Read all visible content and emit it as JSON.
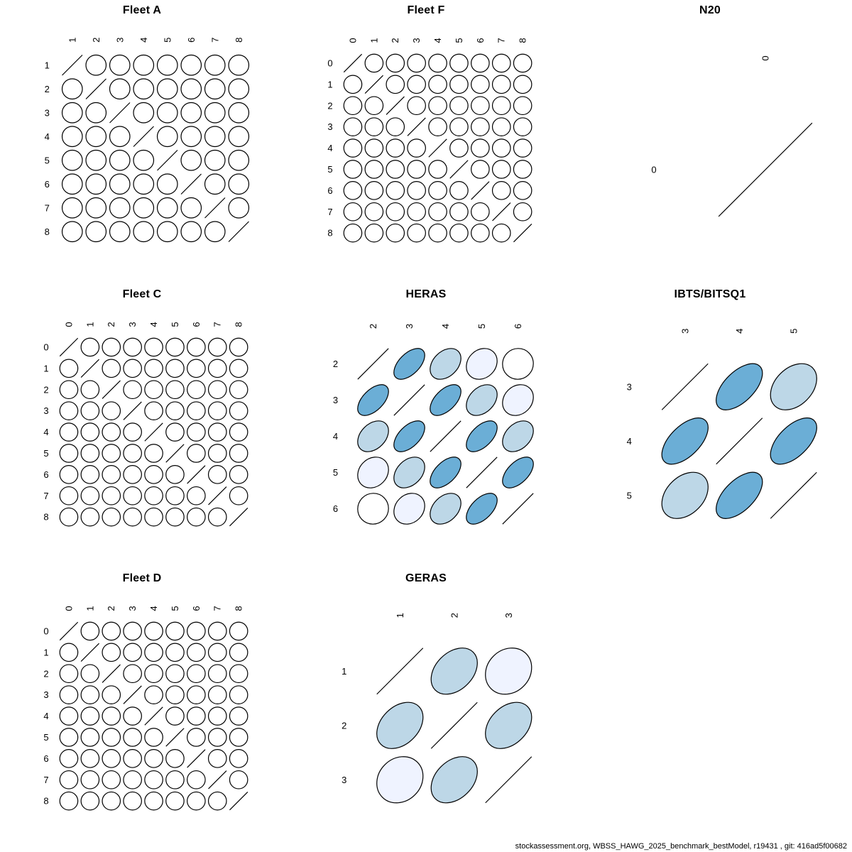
{
  "footer": "stockassessment.org, WBSS_HAWG_2025_benchmark_bestModel, r19431 , git: 416ad5f00682",
  "palette": {
    "ellipse_stroke": "#000000",
    "tick_label_color": "#000000",
    "title_color": "#000000",
    "background": "#ffffff",
    "positive_bins": [
      {
        "abs_r_min": 0.45,
        "color": "#6BAED6"
      },
      {
        "abs_r_min": 0.27,
        "color": "#BDD7E7"
      },
      {
        "abs_r_min": 0.09,
        "color": "#EFF3FF"
      },
      {
        "abs_r_min": 0.0,
        "color": "#FFFFFF"
      }
    ]
  },
  "chart_data": {
    "type": "heatmap",
    "subtype": "correlation-ellipse-matrix-grid",
    "legend_position": "none",
    "panels": [
      {
        "id": "fleet_a",
        "title": "Fleet A",
        "ages": [
          "1",
          "2",
          "3",
          "4",
          "5",
          "6",
          "7",
          "8"
        ],
        "lag_corr": [
          1,
          0,
          0,
          0,
          0,
          0,
          0,
          0
        ]
      },
      {
        "id": "fleet_f",
        "title": "Fleet F",
        "ages": [
          "0",
          "1",
          "2",
          "3",
          "4",
          "5",
          "6",
          "7",
          "8"
        ],
        "lag_corr": [
          1,
          0,
          0,
          0,
          0,
          0,
          0,
          0,
          0
        ]
      },
      {
        "id": "n20",
        "title": "N20",
        "ages": [
          "0"
        ],
        "lag_corr": [
          1
        ]
      },
      {
        "id": "fleet_c",
        "title": "Fleet C",
        "ages": [
          "0",
          "1",
          "2",
          "3",
          "4",
          "5",
          "6",
          "7",
          "8"
        ],
        "lag_corr": [
          1,
          0,
          0,
          0,
          0,
          0,
          0,
          0,
          0
        ]
      },
      {
        "id": "heras",
        "title": "HERAS",
        "ages": [
          "2",
          "3",
          "4",
          "5",
          "6"
        ],
        "lag_corr": [
          1,
          0.55,
          0.35,
          0.18,
          0.02
        ]
      },
      {
        "id": "ibts",
        "title": "IBTS/BITSQ1",
        "ages": [
          "3",
          "4",
          "5"
        ],
        "lag_corr": [
          1,
          0.58,
          0.35
        ]
      },
      {
        "id": "fleet_d",
        "title": "Fleet D",
        "ages": [
          "0",
          "1",
          "2",
          "3",
          "4",
          "5",
          "6",
          "7",
          "8"
        ],
        "lag_corr": [
          1,
          0,
          0,
          0,
          0,
          0,
          0,
          0,
          0
        ]
      },
      {
        "id": "geras",
        "title": "GERAS",
        "ages": [
          "1",
          "2",
          "3"
        ],
        "lag_corr": [
          1,
          0.35,
          0.15
        ]
      }
    ]
  }
}
